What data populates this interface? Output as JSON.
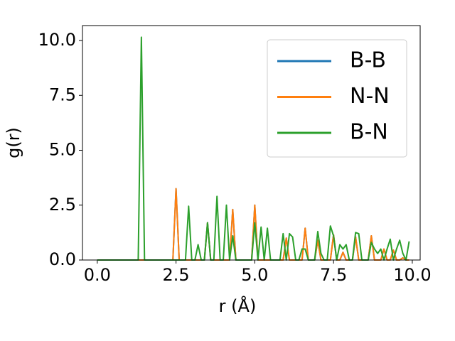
{
  "chart_data": {
    "type": "line",
    "xlabel": "r (Å)",
    "ylabel": "g(r)",
    "x": [
      0,
      0.1,
      0.2,
      0.3,
      0.4,
      0.5,
      0.6,
      0.7,
      0.8,
      0.9,
      1,
      1.1,
      1.2,
      1.3,
      1.4,
      1.5,
      1.6,
      1.7,
      1.8,
      1.9,
      2,
      2.1,
      2.2,
      2.3,
      2.4,
      2.5,
      2.6,
      2.7,
      2.8,
      2.9,
      3,
      3.1,
      3.2,
      3.3,
      3.4,
      3.5,
      3.6,
      3.7,
      3.8,
      3.9,
      4,
      4.1,
      4.2,
      4.3,
      4.4,
      4.5,
      4.6,
      4.7,
      4.8,
      4.9,
      5,
      5.1,
      5.2,
      5.3,
      5.4,
      5.5,
      5.6,
      5.7,
      5.8,
      5.9,
      6,
      6.1,
      6.2,
      6.3,
      6.4,
      6.5,
      6.6,
      6.7,
      6.8,
      6.9,
      7,
      7.1,
      7.2,
      7.3,
      7.4,
      7.5,
      7.6,
      7.7,
      7.8,
      7.9,
      8,
      8.1,
      8.2,
      8.3,
      8.4,
      8.5,
      8.6,
      8.7,
      8.8,
      8.9,
      9,
      9.1,
      9.2,
      9.3,
      9.4,
      9.5,
      9.6,
      9.7,
      9.8,
      9.9
    ],
    "series": [
      {
        "name": "B-B",
        "color": "#1f77b4",
        "values": [
          0,
          0,
          0,
          0,
          0,
          0,
          0,
          0,
          0,
          0,
          0,
          0,
          0,
          0,
          0,
          0,
          0,
          0,
          0,
          0,
          0,
          0,
          0,
          0,
          0,
          3.25,
          0,
          0,
          0,
          0,
          0,
          0,
          0,
          0,
          0,
          1.7,
          0,
          0,
          0,
          0,
          0,
          0,
          0,
          2.3,
          0,
          0,
          0,
          0,
          0,
          0,
          2.5,
          0,
          0,
          0,
          0,
          0,
          0,
          0,
          0,
          0,
          1.0,
          0,
          0,
          0,
          0,
          0,
          1.45,
          0,
          0,
          0,
          0.9,
          0,
          0,
          0,
          0,
          1.15,
          0,
          0,
          0.35,
          0,
          0,
          0,
          1.05,
          0,
          0,
          0,
          0,
          1.1,
          0,
          0,
          0,
          0.5,
          0,
          0,
          0.45,
          0,
          0,
          0.1,
          0,
          0
        ]
      },
      {
        "name": "N-N",
        "color": "#ff7f0e",
        "values": [
          0,
          0,
          0,
          0,
          0,
          0,
          0,
          0,
          0,
          0,
          0,
          0,
          0,
          0,
          0,
          0,
          0,
          0,
          0,
          0,
          0,
          0,
          0,
          0,
          0,
          3.25,
          0,
          0,
          0,
          0,
          0,
          0,
          0,
          0,
          0,
          1.7,
          0,
          0,
          0,
          0,
          0,
          0,
          0,
          2.3,
          0,
          0,
          0,
          0,
          0,
          0,
          2.5,
          0,
          0,
          0,
          0,
          0,
          0,
          0,
          0,
          0,
          1.0,
          0,
          0,
          0,
          0,
          0,
          1.45,
          0,
          0,
          0,
          0.9,
          0,
          0,
          0,
          0,
          1.15,
          0,
          0,
          0.35,
          0,
          0,
          0,
          1.05,
          0,
          0,
          0,
          0,
          1.1,
          0,
          0,
          0,
          0.5,
          0,
          0,
          0.45,
          0,
          0,
          0.1,
          0,
          0
        ]
      },
      {
        "name": "B-N",
        "color": "#2ca02c",
        "values": [
          0,
          0,
          0,
          0,
          0,
          0,
          0,
          0,
          0,
          0,
          0,
          0,
          0,
          0,
          10.15,
          0,
          0,
          0,
          0,
          0,
          0,
          0,
          0,
          0,
          0,
          0,
          0,
          0,
          0,
          2.45,
          0,
          0,
          0.7,
          0,
          0,
          1.7,
          0,
          0,
          2.9,
          0,
          0,
          2.5,
          0,
          1.1,
          0,
          0,
          0,
          0,
          0,
          0,
          1.7,
          0,
          1.5,
          0,
          1.45,
          0,
          0,
          0,
          0,
          1.2,
          0,
          1.2,
          1.05,
          0,
          0,
          0.5,
          0.5,
          0,
          0,
          0,
          1.3,
          0.3,
          0,
          0,
          1.55,
          1.1,
          0,
          0.7,
          0.5,
          0.7,
          0,
          0,
          1.25,
          1.2,
          0,
          0,
          0,
          0.8,
          0.5,
          0.3,
          0.5,
          0,
          0.5,
          0.95,
          0,
          0.5,
          0.9,
          0.3,
          0,
          0.85
        ]
      }
    ],
    "xlim": [
      -0.47,
      10.25
    ],
    "ylim": [
      0,
      10.68
    ],
    "xticks": [
      {
        "value": 0,
        "label": "0.0"
      },
      {
        "value": 2.5,
        "label": "2.5"
      },
      {
        "value": 5,
        "label": "5.0"
      },
      {
        "value": 7.5,
        "label": "7.5"
      },
      {
        "value": 10,
        "label": "10.0"
      }
    ],
    "yticks": [
      {
        "value": 0,
        "label": "0.0"
      },
      {
        "value": 2.5,
        "label": "2.5"
      },
      {
        "value": 5,
        "label": "5.0"
      },
      {
        "value": 7.5,
        "label": "7.5"
      },
      {
        "value": 10,
        "label": "10.0"
      }
    ],
    "legend": "upper right"
  }
}
